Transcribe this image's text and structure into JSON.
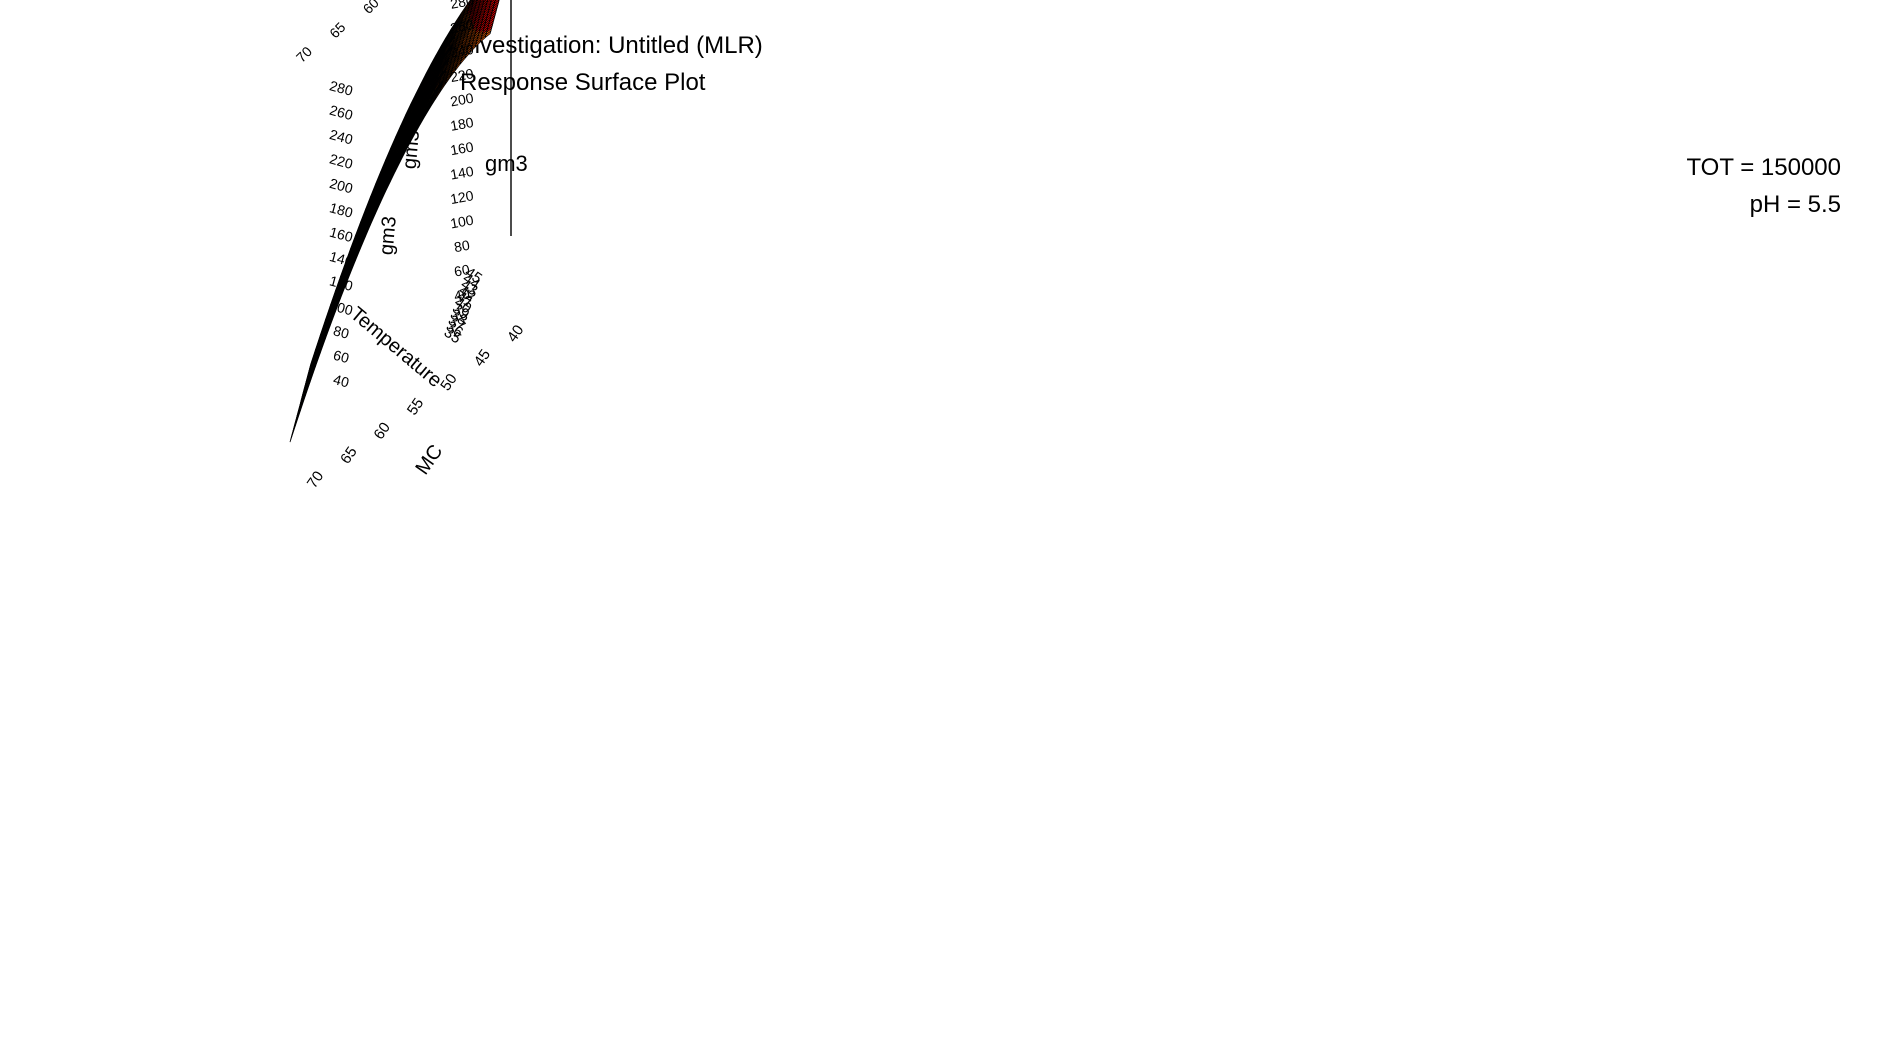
{
  "header": {
    "investigation": "Investigation: Untitled (MLR)",
    "plot_type": "Response Surface Plot"
  },
  "response_label": "gm3",
  "conditions": [
    "TOT = 150000",
    "pH = 5.5"
  ],
  "chart_data": {
    "type": "surface3d",
    "title": "Response Surface Plot",
    "response": "gm3",
    "axes": {
      "temperature": {
        "label": "Temperature",
        "range": [
          35,
          45
        ],
        "ticks": [
          35,
          36,
          37,
          38,
          39,
          40,
          41,
          42,
          43,
          44,
          45
        ]
      },
      "mc": {
        "label": "MC",
        "range": [
          40,
          70
        ],
        "ticks": [
          40,
          45,
          50,
          55,
          60,
          65,
          70
        ]
      },
      "gm3": {
        "label": "gm3",
        "range": [
          40,
          280
        ],
        "ticks": [
          40,
          60,
          80,
          100,
          120,
          140,
          160,
          180,
          200,
          220,
          240,
          260,
          280
        ]
      }
    },
    "surface_corners": [
      {
        "temperature": 45,
        "mc": 40,
        "gm3": 270
      },
      {
        "temperature": 35,
        "mc": 40,
        "gm3": 255
      },
      {
        "temperature": 45,
        "mc": 70,
        "gm3": 55
      },
      {
        "temperature": 35,
        "mc": 70,
        "gm3": 40
      }
    ],
    "colormap": [
      "#0000ff",
      "#00aaff",
      "#00ffff",
      "#00ff80",
      "#00ff00",
      "#80ff00",
      "#ffff00",
      "#ffaa00",
      "#ff6600",
      "#ff0000"
    ],
    "grid": true,
    "legend": "none"
  }
}
